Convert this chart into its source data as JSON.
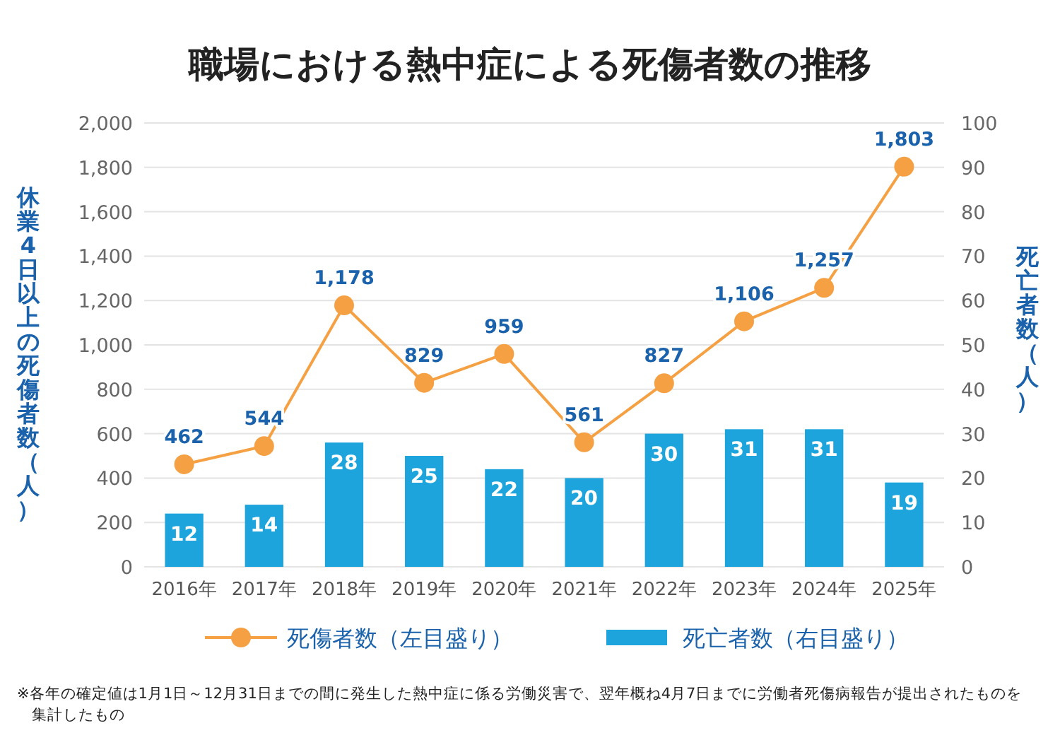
{
  "chart_data": {
    "type": "bar",
    "title": "職場における熱中症による死傷者数の推移",
    "ylabel": "休業4日以上の死傷者数（人）",
    "y2label": "死亡者数（人）",
    "categories": [
      "2016年",
      "2017年",
      "2018年",
      "2019年",
      "2020年",
      "2021年",
      "2022年",
      "2023年",
      "2024年",
      "2025年"
    ],
    "series": [
      {
        "name": "死傷者数（左目盛り）",
        "type": "line",
        "color": "#f5a043",
        "values": [
          462,
          544,
          1178,
          829,
          959,
          561,
          827,
          1106,
          1257,
          1803
        ],
        "value_labels": [
          "462",
          "544",
          "1,178",
          "829",
          "959",
          "561",
          "827",
          "1,106",
          "1,257",
          "1,803"
        ]
      },
      {
        "name": "死亡者数（右目盛り）",
        "axis": "y2",
        "color": "#1da4dc",
        "values": [
          12,
          14,
          28,
          25,
          22,
          20,
          30,
          31,
          31,
          19
        ],
        "value_labels": [
          "12",
          "14",
          "28",
          "25",
          "22",
          "20",
          "30",
          "31",
          "31",
          "19"
        ]
      }
    ],
    "ylim": [
      0,
      2000
    ],
    "yticks": [
      0,
      200,
      400,
      600,
      800,
      {
        "value": 1000,
        "label": "1,000"
      },
      {
        "value": 1200,
        "label": "1,200"
      },
      {
        "value": 1400,
        "label": "1,400"
      },
      {
        "value": 1600,
        "label": "1,600"
      },
      {
        "value": 1800,
        "label": "1,800"
      },
      {
        "value": 2000,
        "label": "2,000"
      }
    ],
    "y2lim": [
      0,
      100
    ],
    "y2ticks": [
      0,
      10,
      20,
      30,
      40,
      50,
      60,
      70,
      80,
      90,
      100
    ],
    "grid": "y",
    "legend": "bottom",
    "marker": "circle",
    "annotations": [
      "※各年の確定値は1月1日～12月31日までの間に発生した熱中症に係る労働災害で、翌年概ね4月7日までに労働者死傷病報告が提出されたものを集計したもの"
    ]
  }
}
